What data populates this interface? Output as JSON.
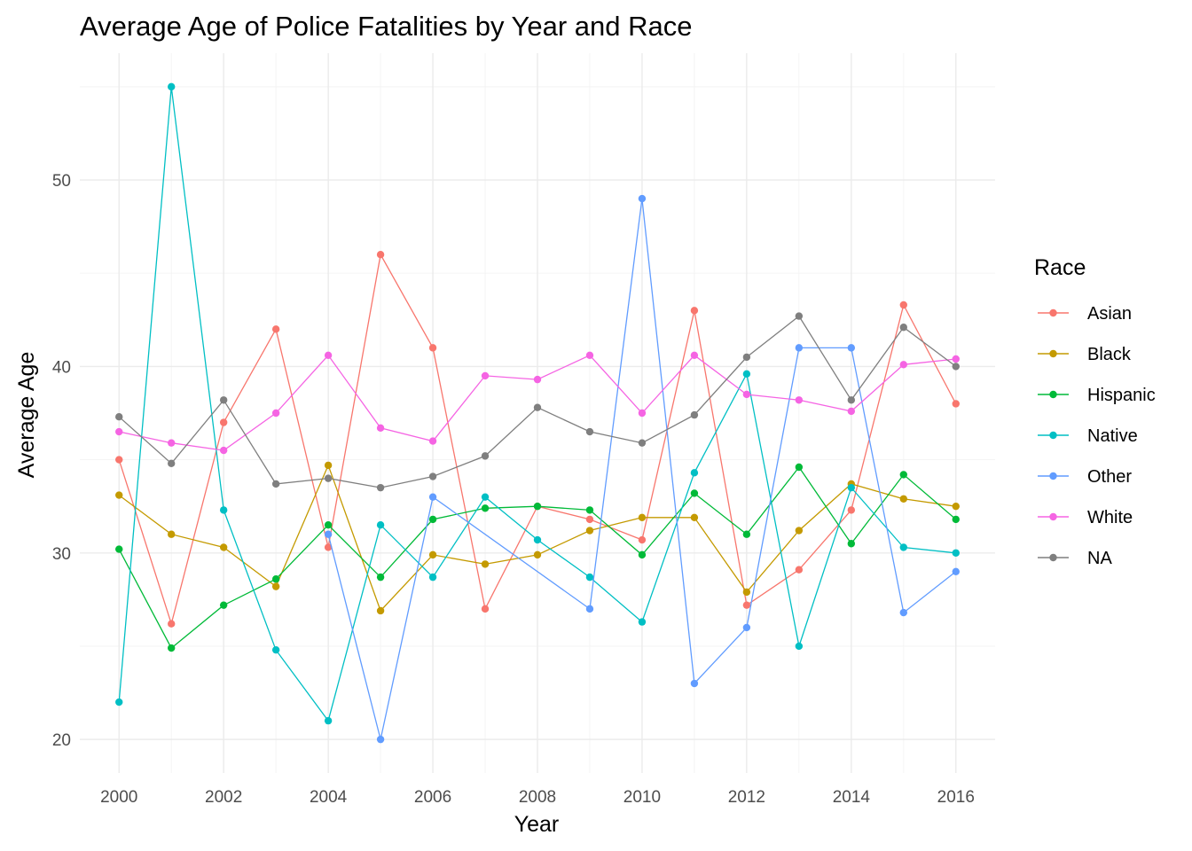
{
  "chart_data": {
    "type": "line",
    "title": "Average Age of Police Fatalities by Year and Race",
    "xlabel": "Year",
    "ylabel": "Average Age",
    "x": [
      2000,
      2001,
      2002,
      2003,
      2004,
      2005,
      2006,
      2007,
      2008,
      2009,
      2010,
      2011,
      2012,
      2013,
      2014,
      2015,
      2016
    ],
    "x_ticks": [
      "2000",
      "2002",
      "2004",
      "2006",
      "2008",
      "2010",
      "2012",
      "2014",
      "2016"
    ],
    "y_ticks": [
      "20",
      "30",
      "40",
      "50"
    ],
    "xlim": [
      1999.25,
      2016.75
    ],
    "ylim": [
      18.2,
      56.8
    ],
    "grid": true,
    "legend": {
      "title": "Race",
      "position": "right"
    },
    "series": [
      {
        "name": "Asian",
        "color": "#F8766D",
        "values": [
          35.0,
          26.2,
          37.0,
          42.0,
          30.3,
          46.0,
          41.0,
          27.0,
          32.5,
          31.8,
          30.7,
          43.0,
          27.2,
          29.1,
          32.3,
          43.3,
          38.0
        ]
      },
      {
        "name": "Black",
        "color": "#C49A00",
        "values": [
          33.1,
          31.0,
          30.3,
          28.2,
          34.7,
          26.9,
          29.9,
          29.4,
          29.9,
          31.2,
          31.9,
          31.9,
          27.9,
          31.2,
          33.7,
          32.9,
          32.5
        ]
      },
      {
        "name": "Hispanic",
        "color": "#00BA38",
        "values": [
          30.2,
          24.9,
          27.2,
          28.6,
          31.5,
          28.7,
          31.8,
          32.4,
          32.5,
          32.3,
          29.9,
          33.2,
          31.0,
          34.6,
          30.5,
          34.2,
          31.8
        ]
      },
      {
        "name": "Native",
        "color": "#00BFC4",
        "values": [
          22.0,
          55.0,
          32.3,
          24.8,
          21.0,
          31.5,
          28.7,
          33.0,
          30.7,
          28.7,
          26.3,
          34.3,
          39.6,
          25.0,
          33.5,
          30.3,
          30.0
        ]
      },
      {
        "name": "Other",
        "color": "#619CFF",
        "values": [
          null,
          null,
          null,
          null,
          31.0,
          20.0,
          33.0,
          null,
          null,
          27.0,
          49.0,
          23.0,
          26.0,
          41.0,
          41.0,
          26.8,
          29.0
        ]
      },
      {
        "name": "White",
        "color": "#F564E3",
        "values": [
          36.5,
          35.9,
          35.5,
          37.5,
          40.6,
          36.7,
          36.0,
          39.5,
          39.3,
          40.6,
          37.5,
          40.6,
          38.5,
          38.2,
          37.6,
          40.1,
          40.4
        ]
      },
      {
        "name": "NA",
        "color": "#7F7F7F",
        "values": [
          37.3,
          34.8,
          38.2,
          33.7,
          34.0,
          33.5,
          34.1,
          35.2,
          37.8,
          36.5,
          35.9,
          37.4,
          40.5,
          42.7,
          38.2,
          42.1,
          40.0
        ]
      }
    ]
  }
}
